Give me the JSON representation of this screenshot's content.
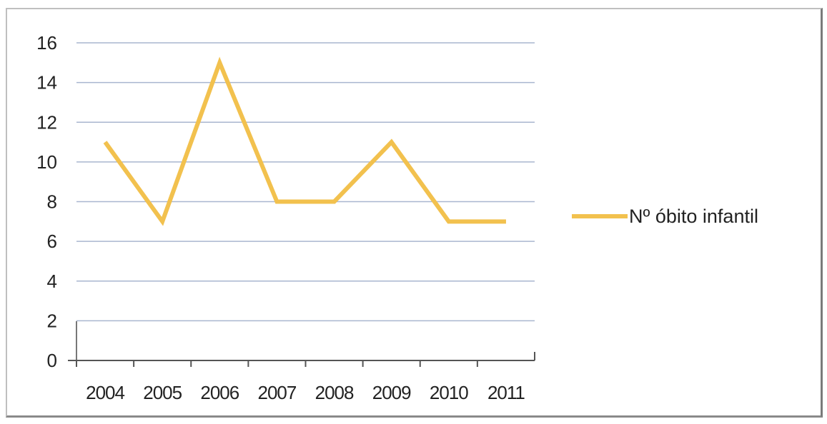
{
  "chart_data": {
    "type": "line",
    "title": "",
    "xlabel": "",
    "ylabel": "",
    "categories": [
      "2004",
      "2005",
      "2006",
      "2007",
      "2008",
      "2009",
      "2010",
      "2011"
    ],
    "series": [
      {
        "name": "Nº óbito infantil",
        "values": [
          11,
          7,
          15,
          8,
          8,
          11,
          7,
          7
        ]
      }
    ],
    "ylim": [
      0,
      16
    ],
    "yticks": [
      "0",
      "2",
      "4",
      "6",
      "8",
      "10",
      "12",
      "14",
      "16"
    ],
    "grid": true,
    "legend": "right",
    "line_color": "#f2c14e",
    "grid_color": "#a9b6cf"
  }
}
